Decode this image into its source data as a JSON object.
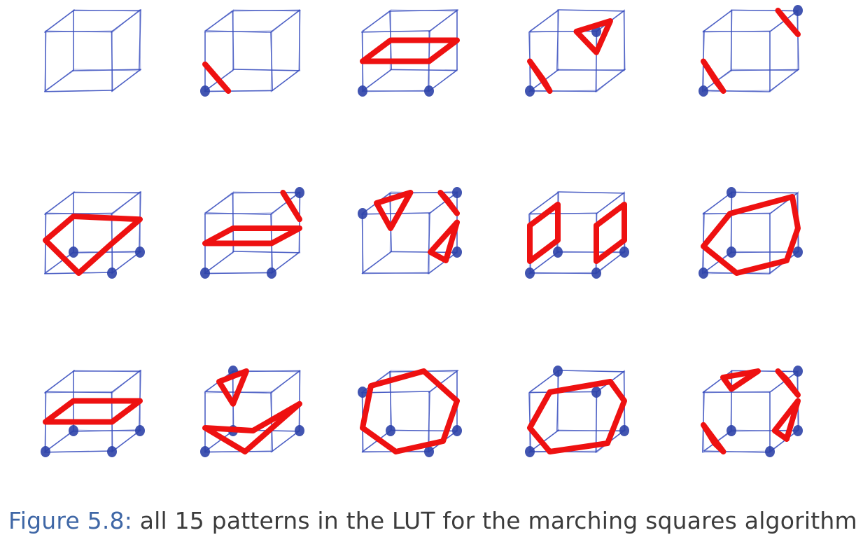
{
  "caption": {
    "label": "Figure 5.8:",
    "text": " all 15 patterns in the LUT for the marching squares algorithm"
  },
  "colors": {
    "cube_ink": "#3a4fbf",
    "vertex_dot": "#2e43a8",
    "surface_patch": "#ee1111",
    "caption_label": "#3f67a6",
    "caption_text": "#3c3c3c"
  },
  "figure": {
    "rows": 3,
    "columns": 5,
    "patterns": [
      {
        "case": 0,
        "marked_vertices": []
      },
      {
        "case": 1,
        "marked_vertices": [
          "v0"
        ]
      },
      {
        "case": 2,
        "marked_vertices": [
          "v0",
          "v1"
        ]
      },
      {
        "case": 3,
        "marked_vertices": [
          "v0",
          "v5"
        ]
      },
      {
        "case": 4,
        "marked_vertices": [
          "v0",
          "v6"
        ]
      },
      {
        "case": 5,
        "marked_vertices": [
          "v1",
          "v2",
          "v3"
        ]
      },
      {
        "case": 6,
        "marked_vertices": [
          "v0",
          "v1",
          "v6"
        ]
      },
      {
        "case": 7,
        "marked_vertices": [
          "v2",
          "v4",
          "v6"
        ]
      },
      {
        "case": 8,
        "marked_vertices": [
          "v0",
          "v1",
          "v2",
          "v3"
        ]
      },
      {
        "case": 9,
        "marked_vertices": [
          "v0",
          "v2",
          "v3",
          "v7"
        ]
      },
      {
        "case": 10,
        "marked_vertices": [
          "v0",
          "v1",
          "v2",
          "v3"
        ]
      },
      {
        "case": 11,
        "marked_vertices": [
          "v0",
          "v2",
          "v3",
          "v7"
        ]
      },
      {
        "case": 12,
        "marked_vertices": [
          "v1",
          "v2",
          "v3",
          "v4"
        ]
      },
      {
        "case": 13,
        "marked_vertices": [
          "v0",
          "v2",
          "v5",
          "v7"
        ]
      },
      {
        "case": 14,
        "marked_vertices": [
          "v1",
          "v2",
          "v3",
          "v6"
        ]
      }
    ]
  }
}
